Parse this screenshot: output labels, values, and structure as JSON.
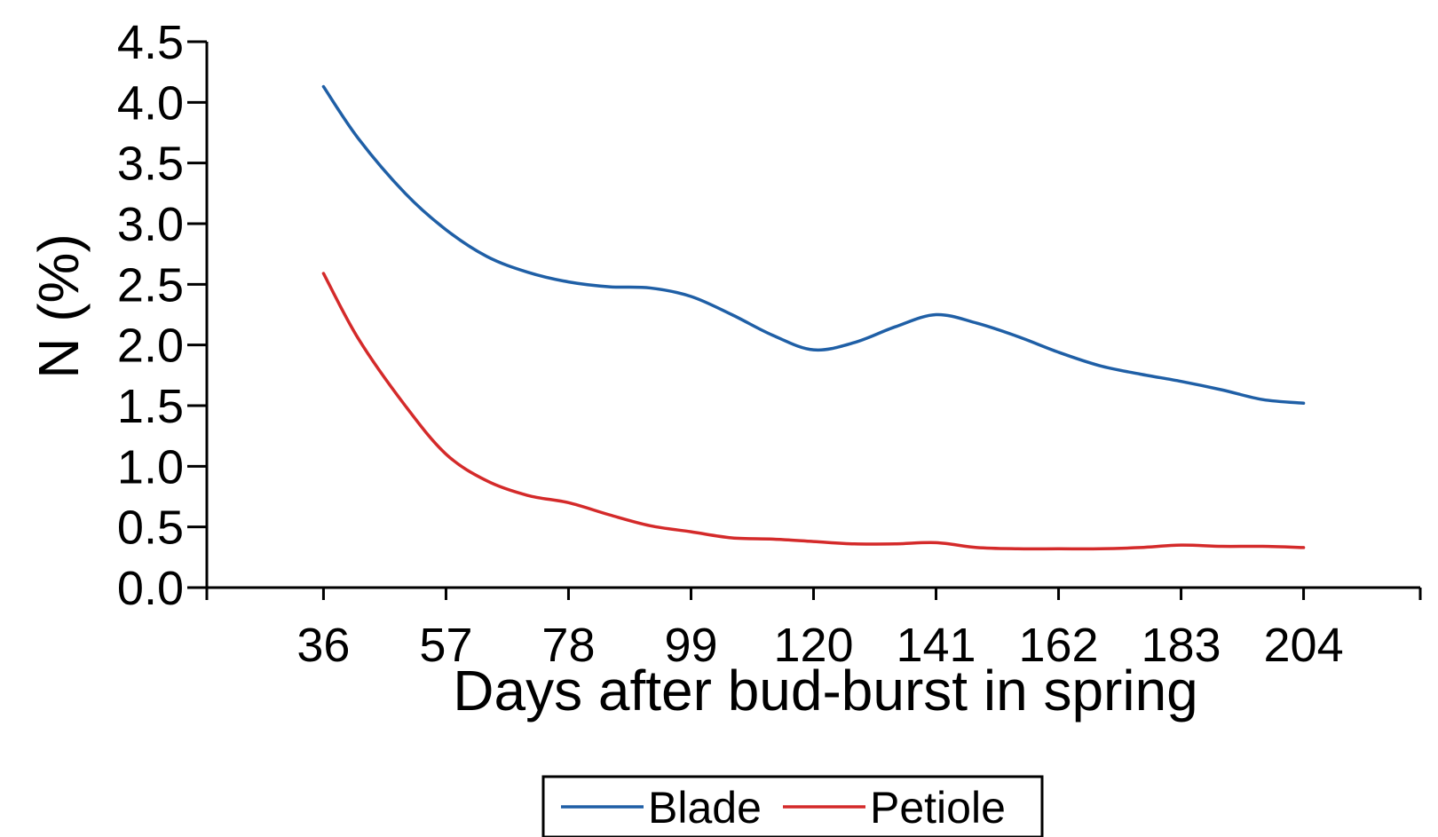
{
  "chart_data": {
    "type": "line",
    "xlabel": "Days after bud-burst in spring",
    "ylabel": "N (%)",
    "xlim": [
      16,
      224
    ],
    "ylim": [
      0,
      4.5
    ],
    "x_ticks": [
      36,
      57,
      78,
      99,
      120,
      141,
      162,
      183,
      204
    ],
    "x_tick_labels": [
      "36",
      "57",
      "78",
      "99",
      "120",
      "141",
      "162",
      "183",
      "204"
    ],
    "y_ticks": [
      0,
      0.5,
      1,
      1.5,
      2,
      2.5,
      3,
      3.5,
      4,
      4.5
    ],
    "y_tick_labels": [
      "0.0",
      "0.5",
      "1.0",
      "1.5",
      "2.0",
      "2.5",
      "3.0",
      "3.5",
      "4.0",
      "4.5"
    ],
    "grid": false,
    "legend_position": "bottom-center",
    "series": [
      {
        "name": "Blade",
        "color": "#1f5fa6",
        "x": [
          36,
          42,
          50,
          57,
          64,
          71,
          78,
          85,
          92,
          99,
          106,
          113,
          120,
          127,
          134,
          141,
          148,
          155,
          162,
          169,
          176,
          183,
          190,
          197,
          204
        ],
        "y": [
          4.13,
          3.7,
          3.25,
          2.95,
          2.73,
          2.6,
          2.52,
          2.48,
          2.47,
          2.4,
          2.25,
          2.08,
          1.96,
          2.02,
          2.15,
          2.25,
          2.18,
          2.07,
          1.94,
          1.83,
          1.76,
          1.7,
          1.63,
          1.55,
          1.52
        ]
      },
      {
        "name": "Petiole",
        "color": "#d42a2a",
        "x": [
          36,
          42,
          50,
          57,
          64,
          71,
          78,
          85,
          92,
          99,
          106,
          113,
          120,
          127,
          134,
          141,
          148,
          155,
          162,
          169,
          176,
          183,
          190,
          197,
          204
        ],
        "y": [
          2.59,
          2.05,
          1.5,
          1.1,
          0.88,
          0.76,
          0.7,
          0.6,
          0.51,
          0.46,
          0.41,
          0.4,
          0.38,
          0.36,
          0.36,
          0.37,
          0.33,
          0.32,
          0.32,
          0.32,
          0.33,
          0.35,
          0.34,
          0.34,
          0.33
        ]
      }
    ]
  }
}
